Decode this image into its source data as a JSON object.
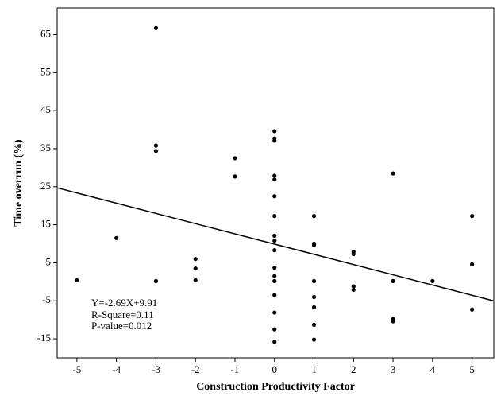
{
  "chart_data": {
    "type": "scatter",
    "x_label": "Construction Productivity Factor",
    "y_label": "Time overrun (%)",
    "annotations": [
      "Y=-2.69X+9.91",
      "R-Square=0.11",
      "P-value=0.012"
    ],
    "color": "#000000",
    "fit": {
      "slope": -2.69,
      "intercept": 9.91
    },
    "x": [
      -5,
      -4,
      -3,
      -3,
      -3,
      -3,
      -2,
      -2,
      -2,
      -1,
      -1,
      0,
      0,
      0,
      0,
      0,
      0,
      0,
      0,
      0,
      0,
      0,
      0,
      0,
      0,
      0,
      0,
      0,
      1,
      1,
      1,
      1,
      1,
      1,
      1,
      1,
      2,
      2,
      2,
      2,
      3,
      3,
      3,
      3,
      4,
      5,
      5,
      5
    ],
    "values": [
      0.4,
      11.5,
      66.7,
      35.8,
      34.4,
      0.2,
      6,
      3.5,
      0.4,
      32.5,
      27.7,
      39.6,
      37.7,
      37.1,
      27.9,
      26.9,
      22.5,
      17.3,
      12.1,
      10.8,
      8.3,
      3.7,
      1.5,
      0.2,
      -3.5,
      -8.1,
      -12.5,
      -15.8,
      17.3,
      10,
      9.6,
      0.2,
      -4,
      -6.7,
      -11.3,
      -15.2,
      7.9,
      7.3,
      -1.2,
      -2.1,
      28.5,
      0.2,
      -9.8,
      -10.4,
      0.2,
      17.3,
      4.6,
      -7.3
    ],
    "xlim": [
      -5.5,
      5.55
    ],
    "ylim": [
      -20,
      72
    ],
    "xticks": [
      -5,
      -4,
      -3,
      -2,
      -1,
      0,
      1,
      2,
      3,
      4,
      5
    ],
    "yticks": [
      65,
      55,
      45,
      35,
      25,
      15,
      5,
      -5,
      -15
    ]
  }
}
